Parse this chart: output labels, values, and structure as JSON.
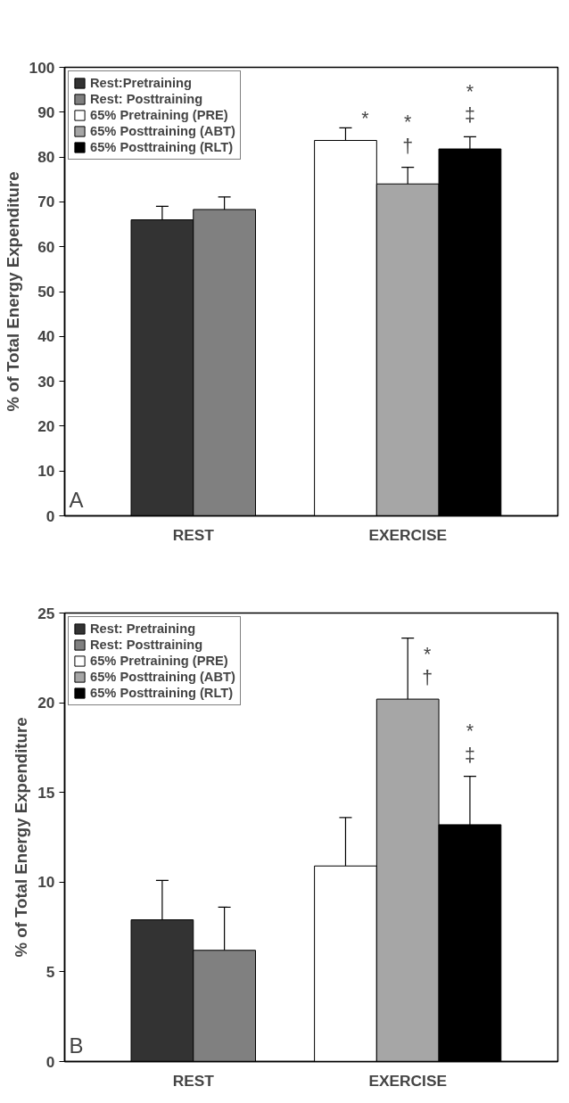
{
  "chart_data": [
    {
      "type": "bar",
      "ylabel": "% of Total Energy Expenditure",
      "categories": [
        "REST",
        "EXERCISE"
      ],
      "ylim": [
        0,
        100
      ],
      "yticks": [
        0,
        10,
        20,
        30,
        40,
        50,
        60,
        70,
        80,
        90,
        100
      ],
      "legend": "top left",
      "grid": false,
      "series": [
        {
          "name": "Rest:Pretraining",
          "color": "#333333",
          "values": [
            66.0,
            null
          ],
          "errors": [
            3.0,
            null
          ]
        },
        {
          "name": "Rest: Posttraining",
          "color": "#808080",
          "values": [
            68.3,
            null
          ],
          "errors": [
            2.8,
            null
          ]
        },
        {
          "name": "65% Pretraining (PRE)",
          "color": "#ffffff",
          "values": [
            null,
            83.7
          ],
          "errors": [
            null,
            2.8
          ]
        },
        {
          "name": "65% Posttraining (ABT)",
          "color": "#a6a6a6",
          "values": [
            null,
            74.0
          ],
          "errors": [
            null,
            3.7
          ]
        },
        {
          "name": "65% Posttraining (RLT)",
          "color": "#000000",
          "values": [
            null,
            81.8
          ],
          "errors": [
            null,
            2.7
          ]
        }
      ],
      "annotations": [
        "A",
        "*",
        "*\n†",
        "*\n‡"
      ]
    },
    {
      "type": "bar",
      "ylabel": "% of Total Energy Expenditure",
      "categories": [
        "REST",
        "EXERCISE"
      ],
      "ylim": [
        0,
        25
      ],
      "yticks": [
        0,
        5,
        10,
        15,
        20,
        25
      ],
      "legend": "top left",
      "grid": false,
      "series": [
        {
          "name": "Rest: Pretraining",
          "color": "#333333",
          "values": [
            7.9,
            null
          ],
          "errors": [
            2.2,
            null
          ]
        },
        {
          "name": "Rest: Posttraining",
          "color": "#808080",
          "values": [
            6.2,
            null
          ],
          "errors": [
            2.4,
            null
          ]
        },
        {
          "name": "65% Pretraining (PRE)",
          "color": "#ffffff",
          "values": [
            null,
            10.9
          ],
          "errors": [
            null,
            2.7
          ]
        },
        {
          "name": "65% Posttraining (ABT)",
          "color": "#a6a6a6",
          "values": [
            null,
            20.2
          ],
          "errors": [
            null,
            3.4
          ]
        },
        {
          "name": "65% Posttraining (RLT)",
          "color": "#000000",
          "values": [
            null,
            13.2
          ],
          "errors": [
            null,
            2.7
          ]
        }
      ],
      "annotations": [
        "B",
        "*\n†",
        "*\n‡"
      ]
    }
  ]
}
